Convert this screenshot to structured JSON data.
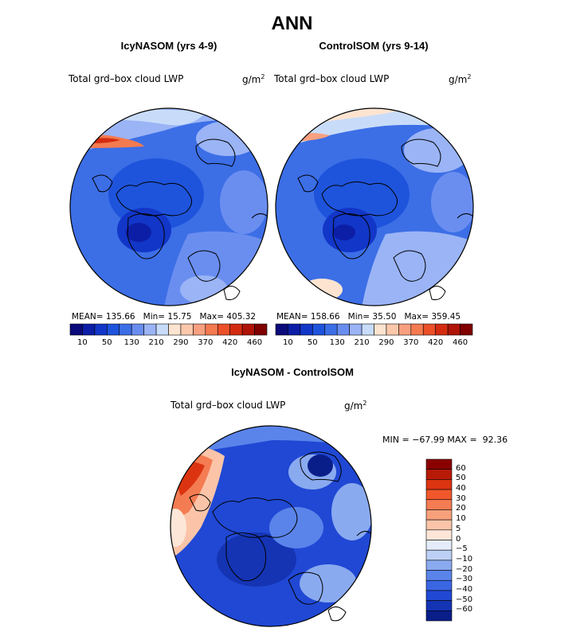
{
  "figure": {
    "title": "ANN"
  },
  "chart_data": [
    {
      "type": "heatmap",
      "id": "icynasom",
      "title": "IcyNASOM (yrs 4-9)",
      "variable_label": "Total grd–box cloud LWP",
      "units_base": "g/m",
      "units_exp": "2",
      "stats": {
        "mean_label": "MEAN=",
        "mean": "135.66",
        "min_label": "Min=",
        "min": "15.75",
        "max_label": "Max=",
        "max": "405.32"
      },
      "colorbar": {
        "orientation": "horizontal",
        "colors": [
          "#0a0a7a",
          "#0c1ea6",
          "#1236c8",
          "#1e54dc",
          "#3c6ee6",
          "#6a8ef0",
          "#9ab4f6",
          "#c8dcfa",
          "#fde4d0",
          "#fcc8ac",
          "#f9a080",
          "#f47a50",
          "#ec5028",
          "#d42c10",
          "#b01408",
          "#800000"
        ],
        "tick_labels": [
          "10",
          "50",
          "130",
          "210",
          "290",
          "370",
          "420",
          "460"
        ]
      }
    },
    {
      "type": "heatmap",
      "id": "controlsom",
      "title": "ControlSOM (yrs 9-14)",
      "variable_label": "Total grd–box cloud LWP",
      "units_base": "g/m",
      "units_exp": "2",
      "stats": {
        "mean_label": "MEAN=",
        "mean": "158.66",
        "min_label": "Min=",
        "min": "35.50",
        "max_label": "Max=",
        "max": "359.45"
      },
      "colorbar": {
        "orientation": "horizontal",
        "colors": [
          "#0a0a7a",
          "#0c1ea6",
          "#1236c8",
          "#1e54dc",
          "#3c6ee6",
          "#6a8ef0",
          "#9ab4f6",
          "#c8dcfa",
          "#fde4d0",
          "#fcc8ac",
          "#f9a080",
          "#f47a50",
          "#ec5028",
          "#d42c10",
          "#b01408",
          "#800000"
        ],
        "tick_labels": [
          "10",
          "50",
          "130",
          "210",
          "290",
          "370",
          "420",
          "460"
        ]
      }
    },
    {
      "type": "heatmap",
      "id": "difference",
      "title": "IcyNASOM - ControlSOM",
      "variable_label": "Total grd–box cloud LWP",
      "units_base": "g/m",
      "units_exp": "2",
      "stats": {
        "min_label": "MIN =",
        "min": "−67.99",
        "max_label": "MAX =",
        "max": "92.36"
      },
      "colorbar": {
        "orientation": "vertical",
        "colors": [
          "#8a0000",
          "#b81a08",
          "#dc3410",
          "#f0582c",
          "#f47c52",
          "#f8a07c",
          "#fbc4a8",
          "#fde6d8",
          "#e4ecfa",
          "#bcd0f6",
          "#8aaaf0",
          "#5a84ea",
          "#3a66e2",
          "#2048d4",
          "#1434b4",
          "#0a1e8a"
        ],
        "tick_labels": [
          "60",
          "50",
          "40",
          "30",
          "20",
          "10",
          "5",
          "0",
          "−5",
          "−10",
          "−20",
          "−30",
          "−40",
          "−50",
          "−60"
        ]
      }
    }
  ]
}
